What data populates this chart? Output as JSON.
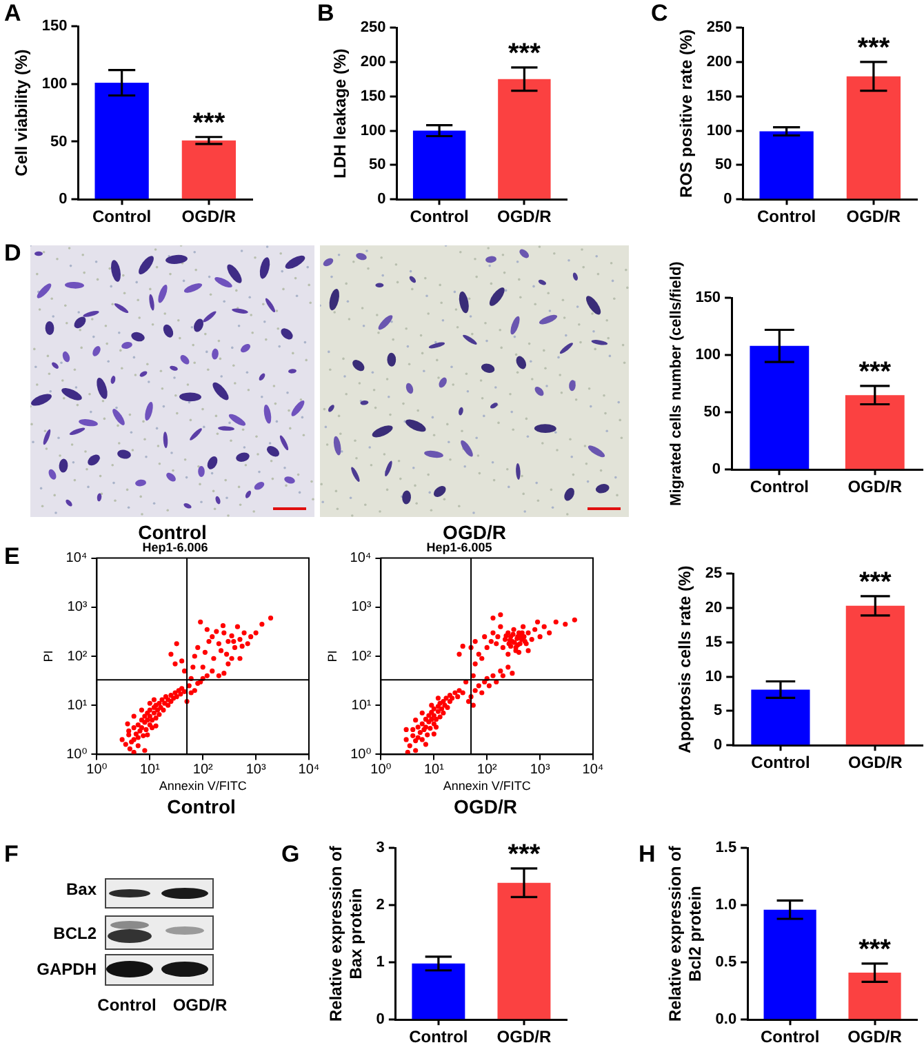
{
  "chart_data": [
    {
      "type": "bar",
      "ylabel": "Cell viability (%)",
      "categories": [
        "Control",
        "OGD/R"
      ],
      "values": [
        101,
        51
      ],
      "errors": [
        11,
        3
      ],
      "colors": [
        "#0000ff",
        "#fb4141"
      ],
      "ylim": [
        0,
        150
      ],
      "yticks": [
        0,
        50,
        100,
        150
      ],
      "annotations": [
        "A",
        {
          "text": "***",
          "x": "OGD/R",
          "y": 54
        }
      ]
    },
    {
      "type": "bar",
      "ylabel": "LDH leakage (%)",
      "categories": [
        "Control",
        "OGD/R"
      ],
      "values": [
        100,
        175
      ],
      "errors": [
        8,
        17
      ],
      "colors": [
        "#0000ff",
        "#fb4141"
      ],
      "ylim": [
        0,
        250
      ],
      "yticks": [
        0,
        50,
        100,
        150,
        200,
        250
      ],
      "annotations": [
        "B",
        {
          "text": "***",
          "x": "OGD/R",
          "y": 192
        }
      ]
    },
    {
      "type": "bar",
      "ylabel": "ROS positive rate (%)",
      "categories": [
        "Control",
        "OGD/R"
      ],
      "values": [
        99,
        179
      ],
      "errors": [
        6,
        21
      ],
      "colors": [
        "#0000ff",
        "#fb4141"
      ],
      "ylim": [
        0,
        250
      ],
      "yticks": [
        0,
        50,
        100,
        150,
        200,
        250
      ],
      "annotations": [
        "C",
        {
          "text": "***",
          "x": "OGD/R",
          "y": 200
        }
      ]
    },
    {
      "type": "other",
      "annotations": [
        "D",
        "Control",
        "OGD/R"
      ]
    },
    {
      "type": "bar",
      "ylabel": "Migrated cells number (cells/field)",
      "categories": [
        "Control",
        "OGD/R"
      ],
      "values": [
        108,
        65
      ],
      "errors": [
        14,
        8
      ],
      "colors": [
        "#0000ff",
        "#fb4141"
      ],
      "ylim": [
        0,
        150
      ],
      "yticks": [
        0,
        50,
        100,
        150
      ],
      "annotations": [
        {
          "text": "***",
          "x": "OGD/R",
          "y": 73
        }
      ]
    },
    {
      "type": "scatter",
      "title": "Hep1-6.006",
      "xlabel": "Annexin V/FITC",
      "ylabel": "PI",
      "log": "xy",
      "marker": "circle",
      "color": "#ff0000",
      "x": [
        3,
        3.5,
        4,
        4,
        4.5,
        5,
        5,
        5.5,
        6,
        6,
        6.5,
        7,
        7,
        7.5,
        8,
        8,
        8.5,
        9,
        9,
        10,
        10,
        10,
        11,
        11,
        12,
        12,
        13,
        13,
        14,
        15,
        15,
        16,
        17,
        18,
        19,
        20,
        22,
        22,
        25,
        25,
        28,
        30,
        32,
        35,
        38,
        40,
        45,
        4.2,
        6,
        9,
        13,
        3.8,
        5,
        7,
        10,
        12,
        5,
        8,
        90,
        120,
        150,
        200,
        250,
        300,
        350,
        400,
        450,
        500,
        600,
        700,
        800,
        1000,
        1300,
        1900,
        80,
        70,
        110,
        160,
        220,
        280,
        350,
        130,
        180,
        240,
        380,
        550,
        65,
        100,
        150,
        200,
        60,
        45,
        40,
        30,
        55,
        70,
        90,
        120,
        300,
        250,
        500,
        25,
        60,
        50,
        80,
        100,
        32
      ],
      "values": [
        2,
        1.6,
        2.5,
        3,
        1.8,
        2,
        3.5,
        2.6,
        4,
        2.2,
        3,
        5,
        3.5,
        2.4,
        4.5,
        6,
        3.2,
        5,
        7,
        4,
        6,
        8,
        5,
        3.5,
        7,
        9,
        5.5,
        10,
        8,
        6.5,
        11,
        9,
        13,
        8,
        11,
        15,
        10,
        13,
        16,
        12,
        14,
        18,
        15,
        20,
        17,
        22,
        19,
        1.3,
        1.5,
        2.5,
        3.8,
        4.2,
        6,
        8,
        11,
        13,
        1.1,
        1.2,
        500,
        350,
        250,
        180,
        300,
        200,
        260,
        150,
        400,
        220,
        300,
        180,
        250,
        300,
        450,
        600,
        150,
        100,
        120,
        90,
        130,
        110,
        90,
        200,
        320,
        420,
        200,
        160,
        60,
        60,
        50,
        40,
        35,
        50,
        80,
        70,
        25,
        20,
        30,
        40,
        70,
        45,
        90,
        110,
        18,
        12,
        28,
        35,
        180
      ],
      "xlim": [
        1,
        10000
      ],
      "ylim": [
        1,
        10000
      ],
      "xticks": [
        {
          "value": 1,
          "label": "10⁰"
        },
        {
          "value": 10,
          "label": "10¹"
        },
        {
          "value": 100,
          "label": "10²"
        },
        {
          "value": 1000,
          "label": "10³"
        },
        {
          "value": 10000,
          "label": "10⁴"
        }
      ],
      "yticks": [
        {
          "value": 1,
          "label": "10⁰"
        },
        {
          "value": 10,
          "label": "10¹"
        },
        {
          "value": 100,
          "label": "10²"
        },
        {
          "value": 1000,
          "label": "10³"
        },
        {
          "value": 10000,
          "label": "10⁴"
        }
      ],
      "ref_lines": [
        {
          "axis": "x",
          "value": 50,
          "color": "#000000"
        },
        {
          "axis": "y",
          "value": 33,
          "color": "#000000"
        }
      ],
      "annotations": [
        "E",
        "Control"
      ]
    },
    {
      "type": "scatter",
      "title": "Hep1-6.005",
      "xlabel": "Annexin V/FITC",
      "ylabel": "PI",
      "log": "xy",
      "marker": "circle",
      "color": "#ff0000",
      "x": [
        3,
        3.5,
        4,
        4,
        4.5,
        5,
        5,
        5.5,
        6,
        6,
        6.5,
        7,
        7,
        7.5,
        8,
        8,
        8.5,
        9,
        9,
        10,
        10,
        10,
        11,
        11,
        12,
        12,
        13,
        13,
        14,
        15,
        15,
        16,
        17,
        18,
        20,
        20,
        22,
        25,
        28,
        30,
        3.2,
        4.5,
        7,
        10,
        3,
        4.5,
        6,
        9,
        12,
        35,
        45,
        50,
        55,
        60,
        70,
        80,
        90,
        100,
        110,
        130,
        150,
        180,
        200,
        250,
        300,
        40,
        55,
        60,
        70,
        80,
        50,
        60,
        90,
        100,
        120,
        130,
        150,
        160,
        180,
        200,
        220,
        250,
        260,
        280,
        300,
        320,
        350,
        380,
        400,
        420,
        450,
        480,
        500,
        550,
        600,
        700,
        800,
        900,
        1000,
        1200,
        1500,
        2000,
        3000,
        4500,
        130,
        180,
        400,
        600,
        250,
        350,
        30,
        35,
        230,
        270,
        310,
        330,
        370,
        420,
        460,
        520,
        280,
        380
      ],
      "values": [
        2,
        1.5,
        2.4,
        3.2,
        1.9,
        2.2,
        3.6,
        2.8,
        4.2,
        2,
        3.2,
        5.2,
        3.6,
        2.5,
        4.6,
        6.2,
        3.4,
        5.2,
        7.2,
        4.2,
        6.2,
        8.5,
        5.2,
        3.6,
        7.5,
        9.5,
        5.8,
        11,
        8.5,
        7,
        12,
        10,
        14,
        9,
        12,
        16,
        14,
        18,
        15,
        20,
        1.1,
        1.2,
        1.6,
        2.6,
        3.2,
        5,
        7,
        10,
        14,
        18,
        12,
        15,
        10,
        20,
        25,
        18,
        30,
        35,
        25,
        40,
        30,
        50,
        40,
        60,
        45,
        30,
        40,
        70,
        110,
        90,
        150,
        200,
        250,
        150,
        200,
        300,
        180,
        250,
        400,
        150,
        220,
        300,
        180,
        250,
        200,
        350,
        150,
        250,
        300,
        180,
        220,
        400,
        250,
        180,
        300,
        220,
        350,
        500,
        250,
        400,
        300,
        500,
        450,
        550,
        600,
        700,
        120,
        130,
        110,
        130,
        110,
        160,
        260,
        210,
        280,
        190,
        230,
        260,
        300,
        200,
        160,
        170
      ],
      "xlim": [
        1,
        10000
      ],
      "ylim": [
        1,
        10000
      ],
      "xticks": [
        {
          "value": 1,
          "label": "10⁰"
        },
        {
          "value": 10,
          "label": "10¹"
        },
        {
          "value": 100,
          "label": "10²"
        },
        {
          "value": 1000,
          "label": "10³"
        },
        {
          "value": 10000,
          "label": "10⁴"
        }
      ],
      "yticks": [
        {
          "value": 1,
          "label": "10⁰"
        },
        {
          "value": 10,
          "label": "10¹"
        },
        {
          "value": 100,
          "label": "10²"
        },
        {
          "value": 1000,
          "label": "10³"
        },
        {
          "value": 10000,
          "label": "10⁴"
        }
      ],
      "ref_lines": [
        {
          "axis": "x",
          "value": 50,
          "color": "#000000"
        },
        {
          "axis": "y",
          "value": 33,
          "color": "#000000"
        }
      ],
      "annotations": [
        "OGD/R"
      ]
    },
    {
      "type": "bar",
      "ylabel": "Apoptosis cells rate (%)",
      "categories": [
        "Control",
        "OGD/R"
      ],
      "values": [
        8.1,
        20.3
      ],
      "errors": [
        1.2,
        1.4
      ],
      "colors": [
        "#0000ff",
        "#fb4141"
      ],
      "ylim": [
        0,
        25
      ],
      "yticks": [
        0,
        5,
        10,
        15,
        20,
        25
      ],
      "annotations": [
        {
          "text": "***",
          "x": "OGD/R",
          "y": 21.7
        }
      ]
    },
    {
      "type": "other",
      "annotations": [
        "F",
        "Bax",
        "BCL2",
        "GAPDH",
        "Control",
        "OGD/R"
      ]
    },
    {
      "type": "bar",
      "ylabel": "Relative expression of Bax protein",
      "categories": [
        "Control",
        "OGD/R"
      ],
      "values": [
        0.98,
        2.39
      ],
      "errors": [
        0.12,
        0.25
      ],
      "colors": [
        "#0000ff",
        "#fb4141"
      ],
      "ylim": [
        0,
        3
      ],
      "yticks": [
        0,
        1,
        2,
        3
      ],
      "annotations": [
        "G",
        {
          "text": "***",
          "x": "OGD/R",
          "y": 2.64
        }
      ]
    },
    {
      "type": "bar",
      "ylabel": "Relative expression of Bcl2 protein",
      "categories": [
        "Control",
        "OGD/R"
      ],
      "values": [
        0.96,
        0.41
      ],
      "errors": [
        0.08,
        0.08
      ],
      "colors": [
        "#0000ff",
        "#fb4141"
      ],
      "ylim": [
        0,
        1.5
      ],
      "yticks": [
        {
          "value": 0,
          "label": "0.0"
        },
        {
          "value": 0.5,
          "label": "0.5"
        },
        {
          "value": 1,
          "label": "1.0"
        },
        {
          "value": 1.5,
          "label": "1.5"
        }
      ],
      "annotations": [
        "H",
        {
          "text": "***",
          "x": "OGD/R",
          "y": 0.49
        }
      ]
    }
  ]
}
